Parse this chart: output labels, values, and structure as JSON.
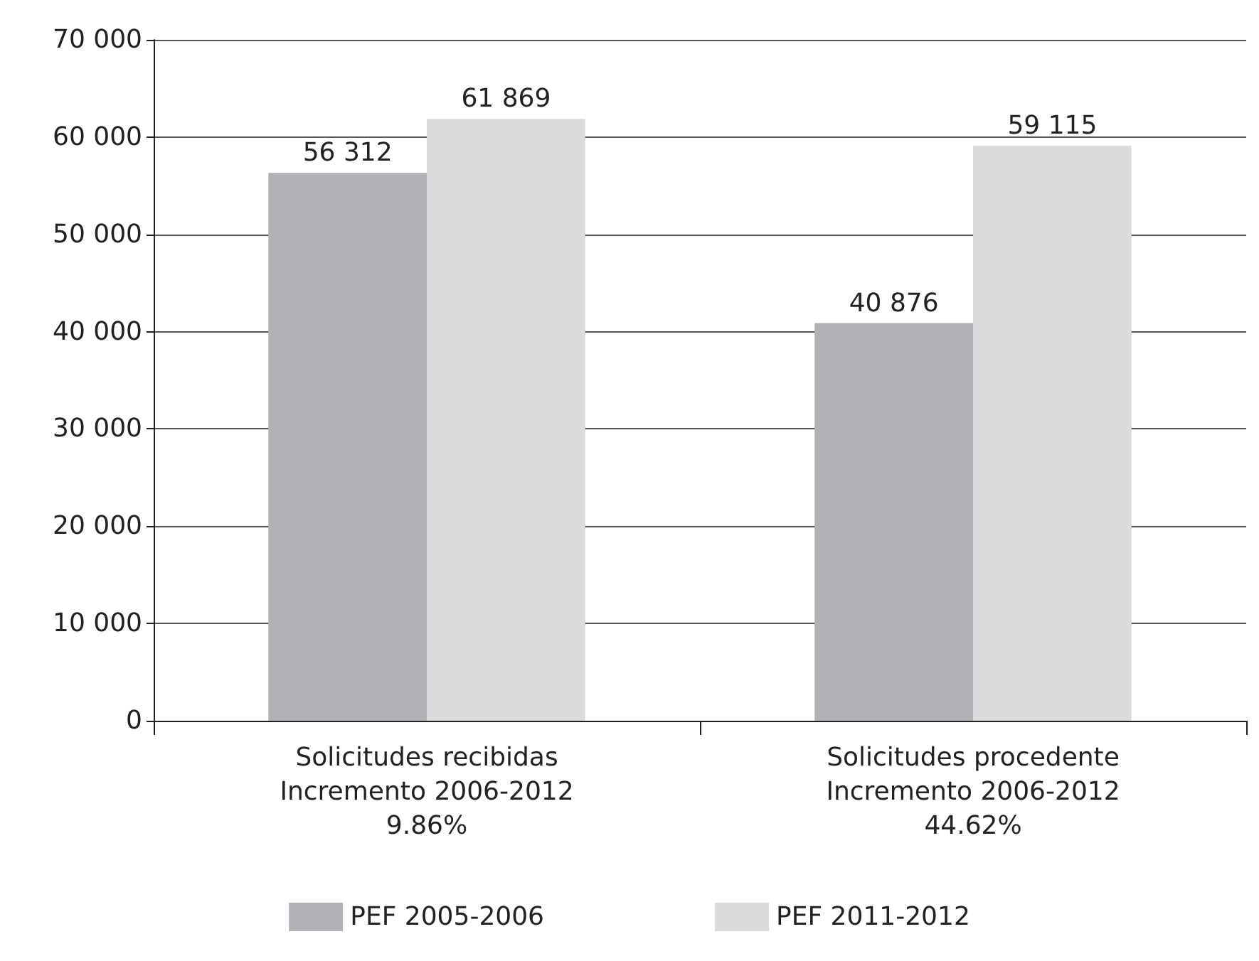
{
  "chart_data": {
    "type": "bar",
    "categories": [
      "Solicitudes recibidas\nIncremento 2006-2012\n9.86%",
      "Solicitudes procedente\nIncremento 2006-2012\n44.62%"
    ],
    "series": [
      {
        "name": "PEF 2005-2006",
        "color": "#b1b2b6",
        "values": [
          56312,
          40876
        ],
        "value_labels": [
          "56 312",
          "40 876"
        ]
      },
      {
        "name": "PEF 2011-2012",
        "color": "#dadbdd",
        "values": [
          61869,
          59115
        ],
        "value_labels": [
          "61 869",
          "59 115"
        ]
      }
    ],
    "ylim": [
      0,
      70000
    ],
    "yticks": [
      0,
      {
        "value": 10000,
        "label": "10 000"
      },
      {
        "value": 20000,
        "label": "20 000"
      },
      {
        "value": 30000,
        "label": "30 000"
      },
      {
        "value": 40000,
        "label": "40 000"
      },
      {
        "value": 50000,
        "label": "50 000"
      },
      {
        "value": 60000,
        "label": "60 000"
      },
      {
        "value": 70000,
        "label": "70 000"
      }
    ],
    "grid": "y",
    "legend": "bottom"
  }
}
